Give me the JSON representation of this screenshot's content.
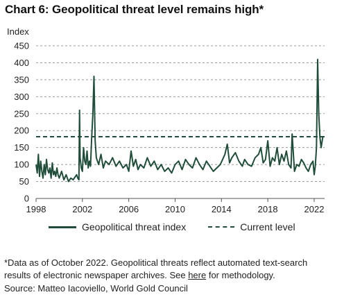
{
  "title": "Chart 6: Geopolitical threat level remains high*",
  "footnote": {
    "line1": "*Data as of October 2022. Geopolitical threats reflect automated text-search",
    "line2_pre": "results of electronic newspaper archives. See ",
    "line2_link": "here",
    "line2_post": " for methodology.",
    "source": "Source: Matteo Iacoviello, World Gold Council"
  },
  "colors": {
    "series": "#1f4d3a",
    "grid": "#9a9a9a"
  },
  "chart_data": {
    "type": "line",
    "ylabel": "Index",
    "ylim": [
      0,
      450
    ],
    "yticks": [
      0,
      50,
      100,
      150,
      200,
      250,
      300,
      350,
      400,
      450
    ],
    "xlim": [
      1998,
      2022.9
    ],
    "xticks": [
      1998,
      2002,
      2006,
      2010,
      2014,
      2018,
      2022
    ],
    "grid": "horizontal dashed",
    "legend_position": "bottom",
    "current_level": {
      "name": "Current level",
      "value": 182
    },
    "series": [
      {
        "name": "Geopolitical threat index",
        "x": [
          1998.0,
          1998.1,
          1998.2,
          1998.3,
          1998.4,
          1998.5,
          1998.6,
          1998.7,
          1998.8,
          1998.9,
          1999.0,
          1999.1,
          1999.2,
          1999.3,
          1999.4,
          1999.5,
          1999.6,
          1999.7,
          1999.8,
          1999.9,
          2000.0,
          2000.2,
          2000.4,
          2000.6,
          2000.8,
          2001.0,
          2001.2,
          2001.4,
          2001.5,
          2001.6,
          2001.7,
          2001.75,
          2001.8,
          2001.9,
          2002.0,
          2002.1,
          2002.2,
          2002.3,
          2002.4,
          2002.5,
          2002.6,
          2002.7,
          2002.8,
          2002.9,
          2003.0,
          2003.1,
          2003.2,
          2003.3,
          2003.4,
          2003.6,
          2003.8,
          2004.0,
          2004.3,
          2004.6,
          2004.9,
          2005.2,
          2005.5,
          2005.8,
          2006.0,
          2006.2,
          2006.4,
          2006.6,
          2006.8,
          2007.0,
          2007.3,
          2007.6,
          2007.9,
          2008.2,
          2008.5,
          2008.8,
          2009.1,
          2009.4,
          2009.7,
          2010.0,
          2010.3,
          2010.6,
          2010.9,
          2011.2,
          2011.5,
          2011.8,
          2012.1,
          2012.4,
          2012.7,
          2013.0,
          2013.3,
          2013.6,
          2013.9,
          2014.1,
          2014.3,
          2014.5,
          2014.7,
          2014.9,
          2015.2,
          2015.5,
          2015.8,
          2016.0,
          2016.3,
          2016.6,
          2016.9,
          2017.2,
          2017.4,
          2017.6,
          2017.8,
          2018.0,
          2018.2,
          2018.4,
          2018.6,
          2018.8,
          2019.0,
          2019.2,
          2019.4,
          2019.6,
          2019.8,
          2020.0,
          2020.1,
          2020.3,
          2020.5,
          2020.7,
          2020.9,
          2021.1,
          2021.3,
          2021.5,
          2021.7,
          2021.9,
          2022.0,
          2022.1,
          2022.2,
          2022.3,
          2022.4,
          2022.5,
          2022.6,
          2022.75
        ],
        "values": [
          100,
          75,
          130,
          65,
          110,
          80,
          60,
          100,
          70,
          115,
          85,
          75,
          90,
          60,
          105,
          70,
          80,
          65,
          90,
          70,
          60,
          80,
          55,
          70,
          50,
          60,
          55,
          65,
          70,
          60,
          55,
          260,
          120,
          90,
          80,
          150,
          110,
          100,
          140,
          90,
          110,
          95,
          180,
          250,
          360,
          170,
          120,
          110,
          100,
          130,
          90,
          110,
          100,
          120,
          95,
          110,
          90,
          100,
          80,
          140,
          95,
          115,
          85,
          100,
          90,
          120,
          95,
          110,
          85,
          100,
          80,
          90,
          75,
          100,
          110,
          85,
          115,
          100,
          90,
          120,
          100,
          85,
          110,
          95,
          80,
          90,
          100,
          115,
          130,
          160,
          105,
          120,
          135,
          110,
          95,
          115,
          100,
          95,
          120,
          130,
          150,
          105,
          115,
          170,
          95,
          120,
          110,
          150,
          100,
          130,
          110,
          140,
          100,
          90,
          190,
          80,
          100,
          95,
          115,
          105,
          90,
          80,
          100,
          110,
          70,
          95,
          150,
          410,
          250,
          180,
          150,
          182
        ]
      }
    ]
  }
}
